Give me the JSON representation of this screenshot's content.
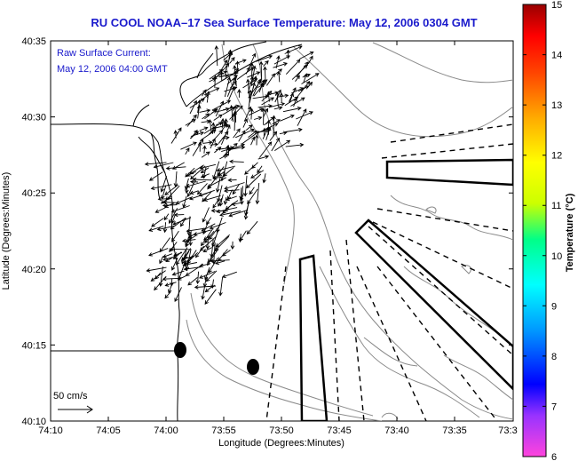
{
  "title": "RU COOL  NOAA–17  Sea Surface Temperature:  May 12, 2006 0304 GMT",
  "annotation": {
    "line1": "Raw Surface Current:",
    "line2": "May 12, 2006 04:00 GMT"
  },
  "scale_label": "50 cm/s",
  "x_axis": {
    "label": "Longitude (Degrees:Minutes)",
    "ticks": [
      "74:10",
      "74:05",
      "74:00",
      "73:55",
      "73:50",
      "73:45",
      "73:40",
      "73:35",
      "73:3"
    ]
  },
  "y_axis": {
    "label": "Latitude (Degrees:Minutes)",
    "ticks": [
      "40:35",
      "40:30",
      "40:25",
      "40:20",
      "40:15",
      "40:10"
    ]
  },
  "colorbar": {
    "label": "Temperature (°C)",
    "ticks": [
      "15",
      "14",
      "13",
      "12",
      "11",
      "10",
      "9",
      "8",
      "7",
      "6"
    ],
    "colors": [
      "#ff33cc",
      "#9933ff",
      "#0000ff",
      "#0099ff",
      "#00ffff",
      "#00ff66",
      "#ccff00",
      "#ffff00",
      "#ffaa00",
      "#ff5500",
      "#ff0000",
      "#990000"
    ]
  },
  "line_color": "#000000"
}
